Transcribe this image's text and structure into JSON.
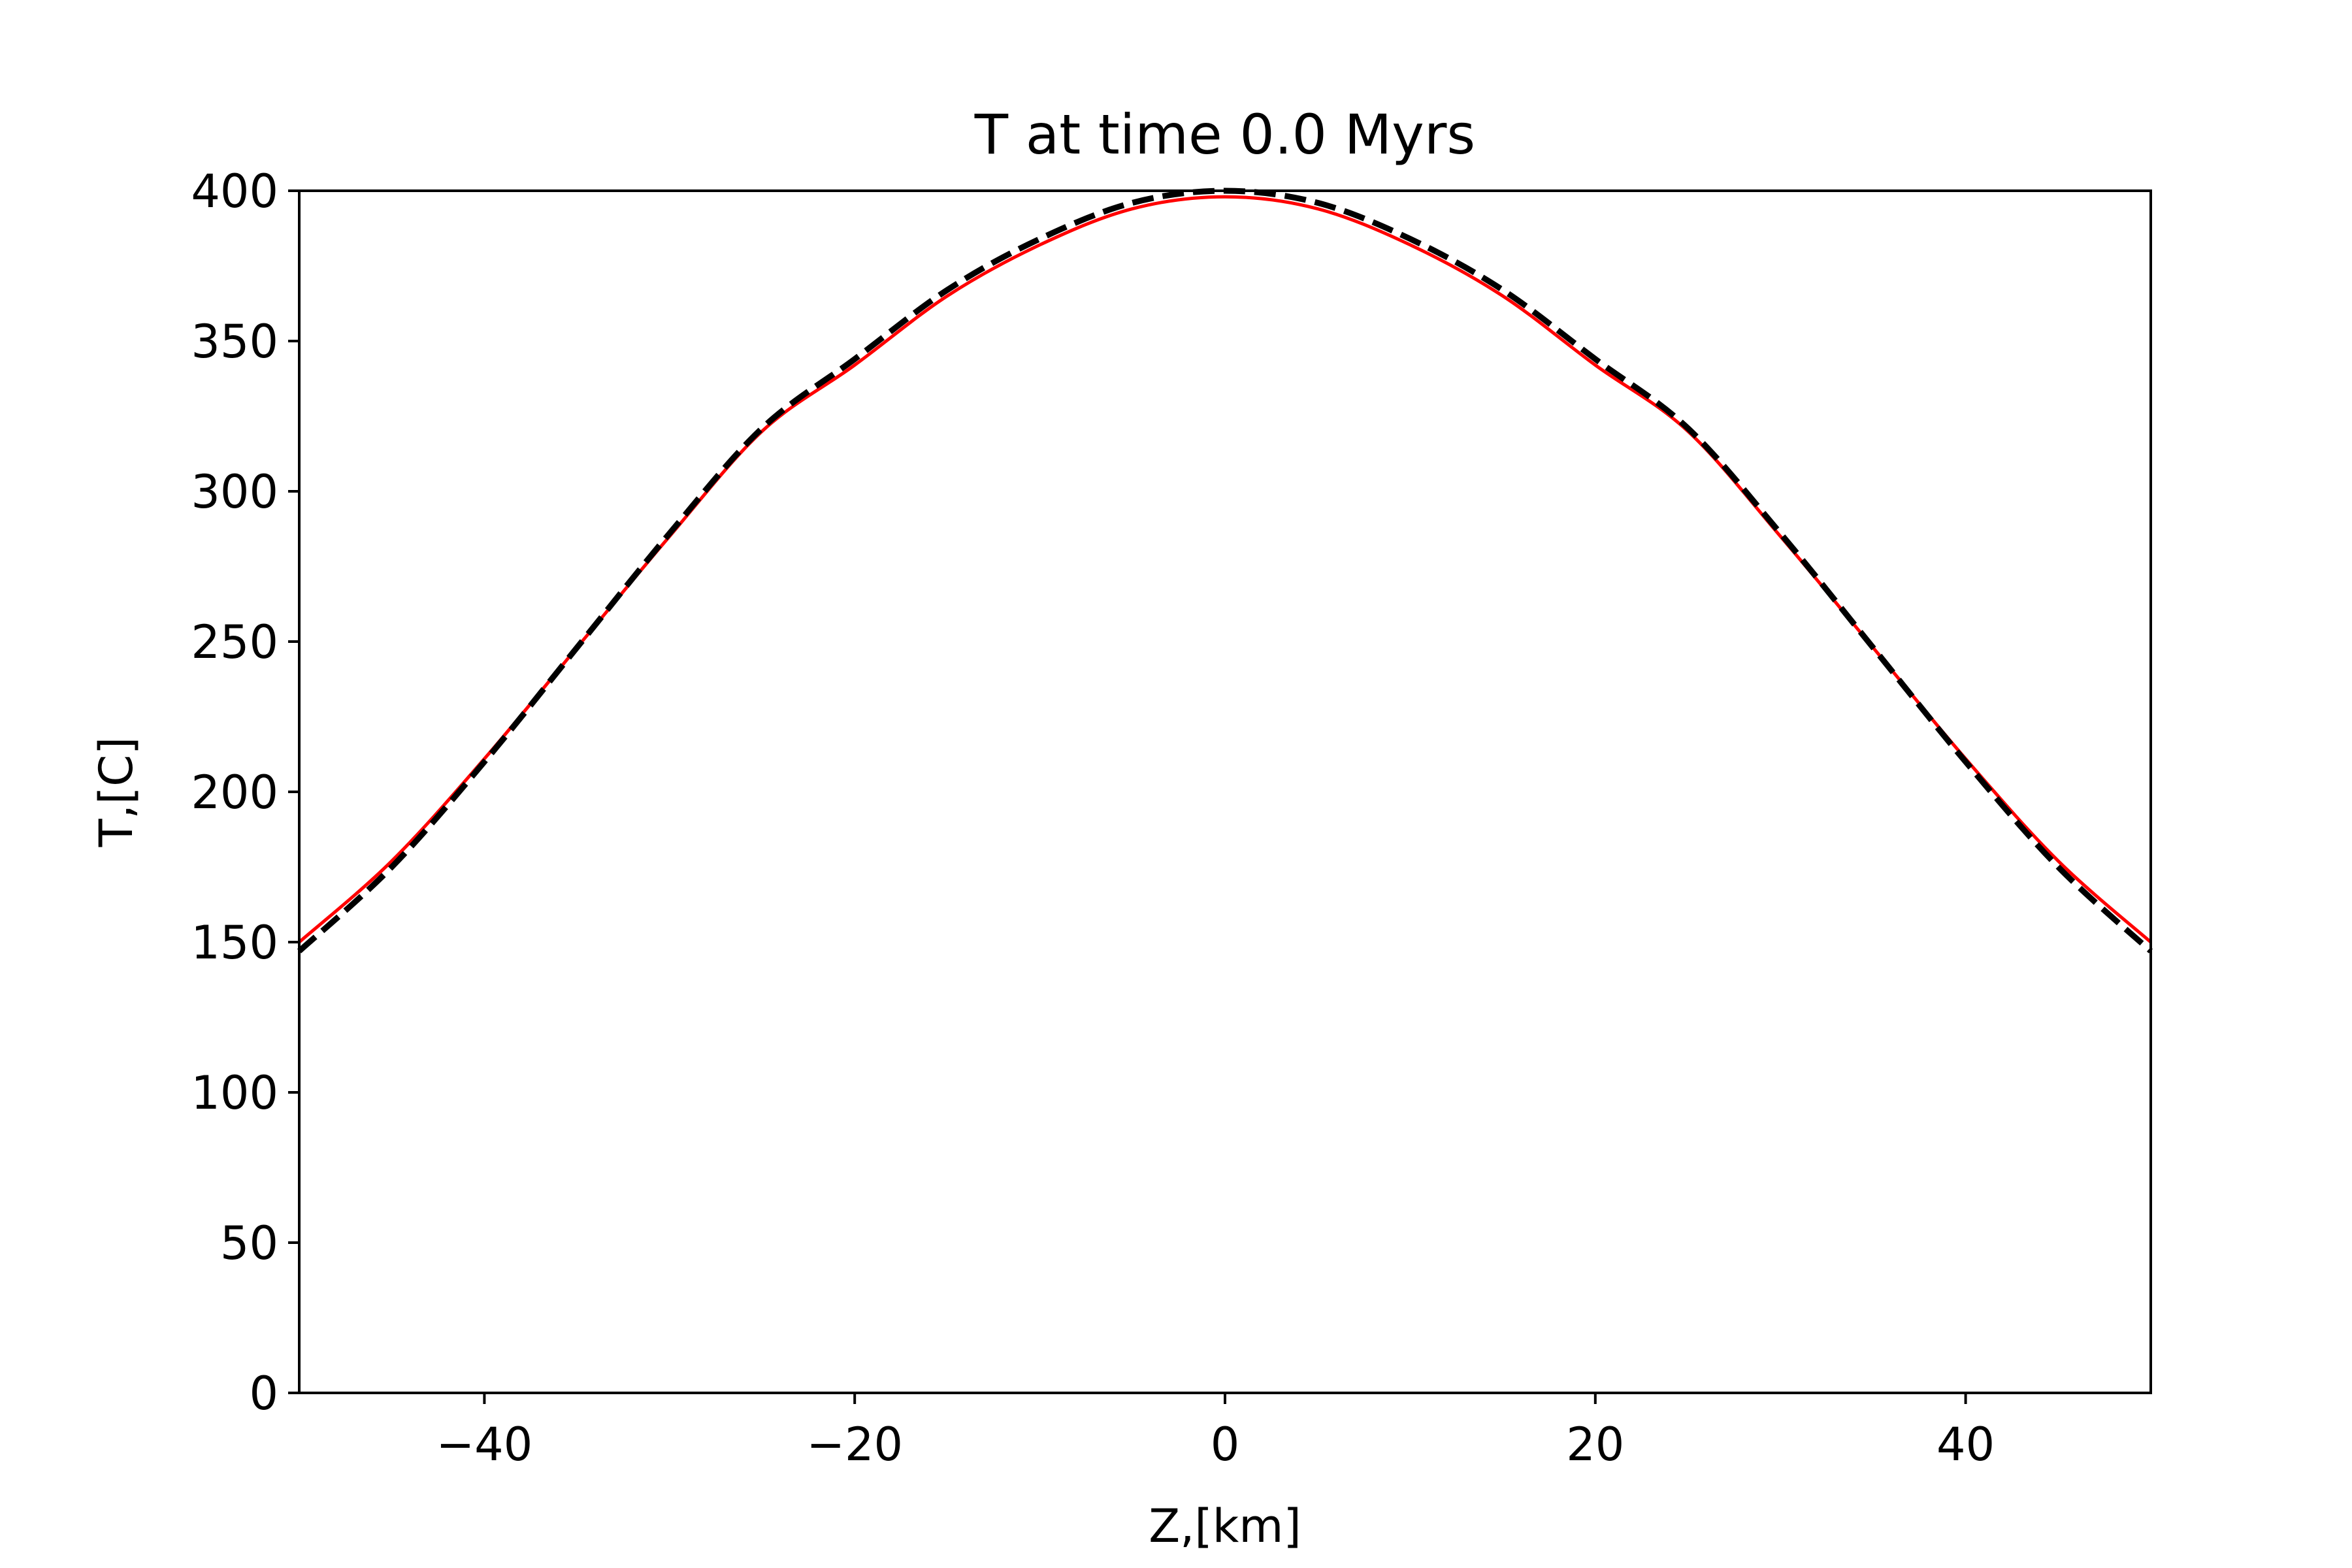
{
  "chart_data": {
    "type": "line",
    "title": "T at time 0.0 Myrs",
    "xlabel": "Z,[km]",
    "ylabel": "T,[C]",
    "xlim": [
      -50,
      50
    ],
    "ylim": [
      0,
      400
    ],
    "xticks": [
      -40,
      -20,
      0,
      20,
      40
    ],
    "xtick_labels": [
      "−40",
      "−20",
      "0",
      "20",
      "40"
    ],
    "yticks": [
      0,
      50,
      100,
      150,
      200,
      250,
      300,
      350,
      400
    ],
    "ytick_labels": [
      "0",
      "50",
      "100",
      "150",
      "200",
      "250",
      "300",
      "350",
      "400"
    ],
    "grid": false,
    "legend": "none",
    "series": [
      {
        "style": "solid",
        "color": "#ff0000",
        "x": [
          -50,
          -45,
          -40,
          -35,
          -30,
          -25,
          -20,
          -15,
          -10,
          -5,
          0,
          5,
          10,
          15,
          20,
          25,
          30,
          35,
          40,
          45,
          50
        ],
        "y": [
          150,
          177,
          211,
          248,
          285,
          320,
          342,
          365,
          382,
          394,
          398,
          394,
          382,
          365,
          342,
          320,
          285,
          248,
          211,
          177,
          150
        ]
      },
      {
        "style": "dashed",
        "color": "#000000",
        "x": [
          -50,
          -45,
          -40,
          -35,
          -30,
          -25,
          -20,
          -15,
          -10,
          -5,
          0,
          5,
          10,
          15,
          20,
          25,
          30,
          35,
          40,
          45,
          50
        ],
        "y": [
          147,
          175,
          210,
          248,
          286,
          321,
          344,
          367,
          384,
          396,
          400,
          396,
          384,
          367,
          344,
          321,
          286,
          248,
          210,
          175,
          147
        ]
      }
    ]
  }
}
